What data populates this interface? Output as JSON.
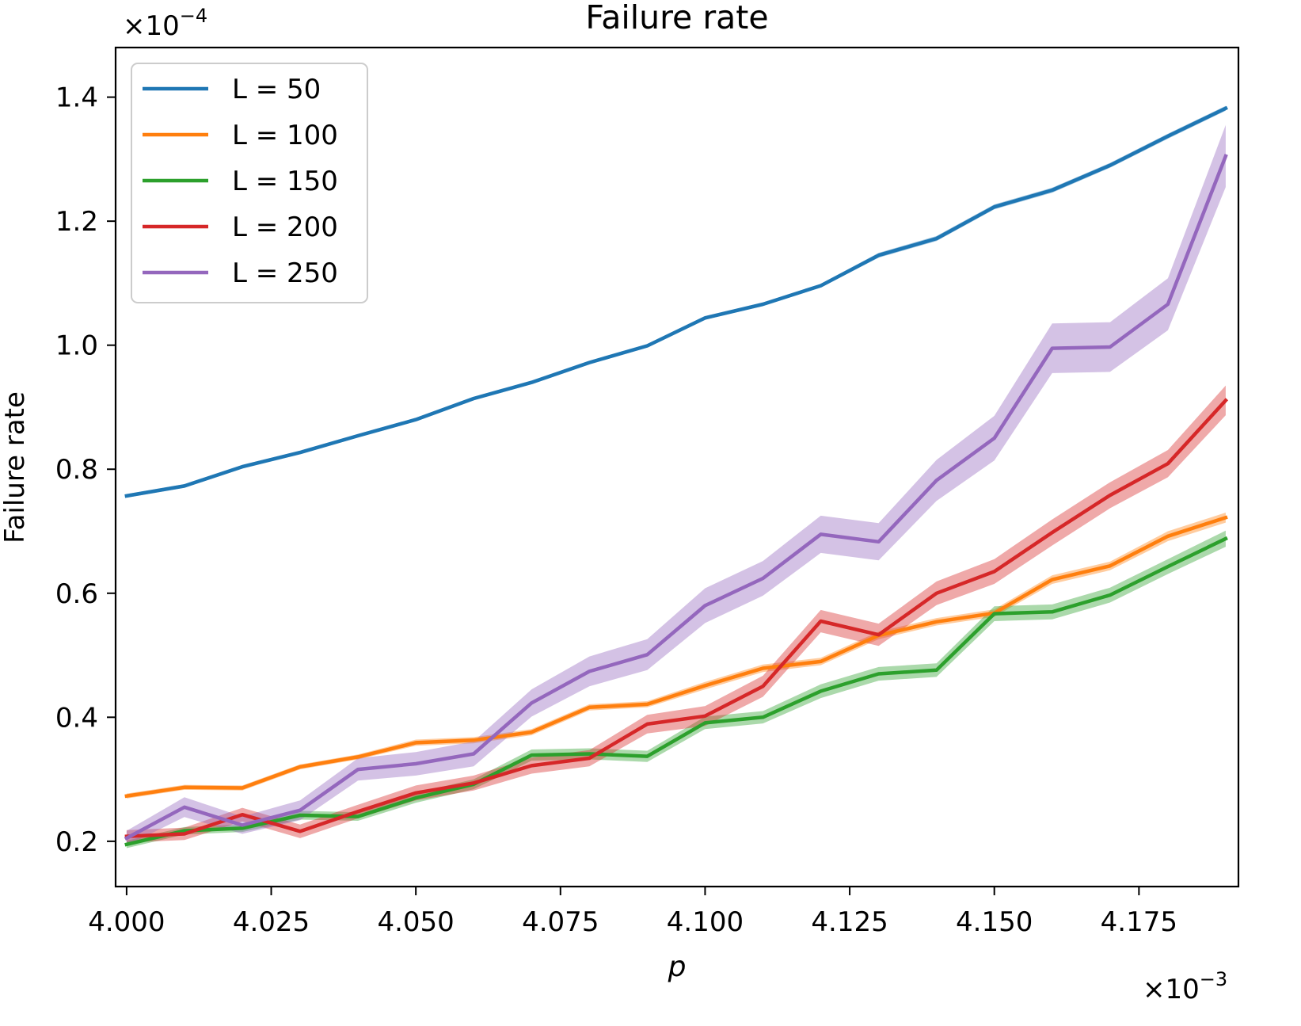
{
  "chart_data": {
    "type": "line",
    "title": "Failure rate",
    "xlabel": "p",
    "ylabel": "Failure rate",
    "x_offset_label": "×10",
    "x_offset_exp": "−3",
    "y_offset_label": "×10",
    "y_offset_exp": "−4",
    "xlim": [
      3.9981,
      4.1922
    ],
    "ylim": [
      0.127,
      1.48
    ],
    "xticks": [
      4.0,
      4.025,
      4.05,
      4.075,
      4.1,
      4.125,
      4.15,
      4.175
    ],
    "xtick_labels": [
      "4.000",
      "4.025",
      "4.050",
      "4.075",
      "4.100",
      "4.125",
      "4.150",
      "4.175"
    ],
    "yticks": [
      0.2,
      0.4,
      0.6,
      0.8,
      1.0,
      1.2,
      1.4
    ],
    "ytick_labels": [
      "0.2",
      "0.4",
      "0.6",
      "0.8",
      "1.0",
      "1.2",
      "1.4"
    ],
    "grid": false,
    "legend_position": "top-left",
    "x": [
      4.0,
      4.01,
      4.02,
      4.03,
      4.04,
      4.05,
      4.06,
      4.07,
      4.08,
      4.09,
      4.1,
      4.11,
      4.12,
      4.13,
      4.14,
      4.15,
      4.16,
      4.17,
      4.18,
      4.19
    ],
    "series": [
      {
        "name": "L = 50",
        "color": "#1f77b4",
        "values": [
          0.757,
          0.773,
          0.804,
          0.827,
          0.854,
          0.88,
          0.914,
          0.94,
          0.972,
          0.999,
          1.044,
          1.066,
          1.096,
          1.145,
          1.172,
          1.223,
          1.25,
          1.29,
          1.337,
          1.382
        ],
        "band": [
          0.003,
          0.003,
          0.003,
          0.003,
          0.003,
          0.003,
          0.003,
          0.003,
          0.003,
          0.003,
          0.003,
          0.003,
          0.003,
          0.004,
          0.004,
          0.004,
          0.004,
          0.004,
          0.004,
          0.004
        ]
      },
      {
        "name": "L = 100",
        "color": "#ff7f0e",
        "values": [
          0.273,
          0.287,
          0.286,
          0.32,
          0.336,
          0.359,
          0.363,
          0.376,
          0.416,
          0.421,
          0.451,
          0.479,
          0.49,
          0.532,
          0.554,
          0.568,
          0.622,
          0.644,
          0.692,
          0.722
        ],
        "band": [
          0.004,
          0.004,
          0.004,
          0.004,
          0.004,
          0.005,
          0.005,
          0.005,
          0.005,
          0.005,
          0.006,
          0.006,
          0.006,
          0.006,
          0.006,
          0.006,
          0.007,
          0.007,
          0.008,
          0.008
        ]
      },
      {
        "name": "L = 150",
        "color": "#2ca02c",
        "values": [
          0.195,
          0.217,
          0.221,
          0.242,
          0.24,
          0.27,
          0.292,
          0.339,
          0.341,
          0.337,
          0.391,
          0.4,
          0.442,
          0.47,
          0.476,
          0.567,
          0.57,
          0.597,
          0.643,
          0.688
        ],
        "band": [
          0.006,
          0.006,
          0.006,
          0.007,
          0.007,
          0.008,
          0.008,
          0.009,
          0.009,
          0.009,
          0.01,
          0.01,
          0.011,
          0.011,
          0.011,
          0.012,
          0.012,
          0.012,
          0.012,
          0.013
        ]
      },
      {
        "name": "L = 200",
        "color": "#d62728",
        "values": [
          0.208,
          0.212,
          0.243,
          0.216,
          0.248,
          0.278,
          0.294,
          0.322,
          0.334,
          0.389,
          0.402,
          0.45,
          0.555,
          0.533,
          0.6,
          0.635,
          0.698,
          0.758,
          0.809,
          0.911
        ],
        "band": [
          0.01,
          0.01,
          0.011,
          0.011,
          0.011,
          0.012,
          0.012,
          0.013,
          0.013,
          0.015,
          0.016,
          0.017,
          0.018,
          0.018,
          0.019,
          0.02,
          0.021,
          0.021,
          0.022,
          0.024
        ]
      },
      {
        "name": "L = 250",
        "color": "#9467bd",
        "values": [
          0.205,
          0.255,
          0.226,
          0.25,
          0.316,
          0.325,
          0.341,
          0.423,
          0.474,
          0.501,
          0.58,
          0.624,
          0.695,
          0.683,
          0.782,
          0.85,
          0.995,
          0.997,
          1.066,
          1.305
        ],
        "band": [
          0.012,
          0.016,
          0.014,
          0.016,
          0.018,
          0.019,
          0.02,
          0.022,
          0.024,
          0.025,
          0.028,
          0.028,
          0.03,
          0.03,
          0.033,
          0.036,
          0.04,
          0.04,
          0.042,
          0.05
        ]
      }
    ]
  }
}
